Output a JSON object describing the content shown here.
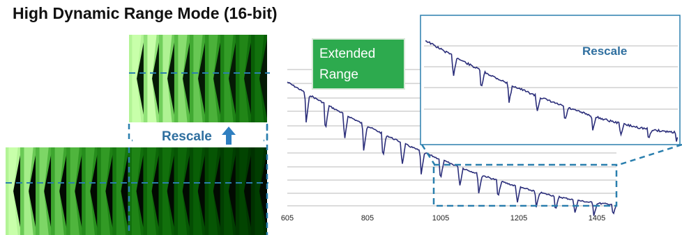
{
  "title": "High Dynamic Range Mode (16-bit)",
  "labels": {
    "rescale_left": "Rescale",
    "rescale_inset": "Rescale",
    "extended_range_line1": "Extended",
    "extended_range_line2": "Range"
  },
  "colors": {
    "accent_blue": "#2f6f9f",
    "dash_blue": "#2a7fae",
    "label_green": "#2daa4e",
    "curve": "#2b2e7a",
    "stripe_green": "#39ff4a"
  },
  "icons": {
    "rescale_arrow": "up-arrow-icon"
  },
  "chart_data": {
    "type": "line",
    "x_tick_labels": [
      "605",
      "805",
      "1005",
      "1205",
      "1405"
    ],
    "grid": true,
    "inset": {
      "label": "Rescale",
      "description_of_range": "zoomed view of x 1005–1485"
    }
  }
}
